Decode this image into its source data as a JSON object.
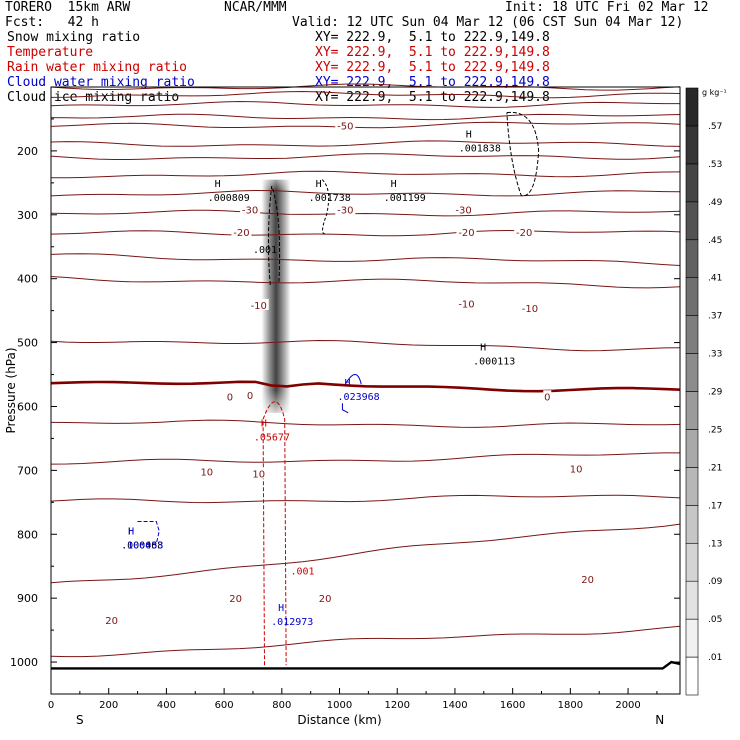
{
  "header": {
    "model": "TORERO  15km ARW",
    "org": "NCAR/MMM",
    "init": "Init: 18 UTC Fri 02 Mar 12",
    "fcst": "Fcst:   42 h",
    "valid": "Valid: 12 UTC Sun 04 Mar 12 (06 CST Sun 04 Mar 12)"
  },
  "fields": [
    {
      "name": "Snow mixing ratio",
      "xy": "XY= 222.9,  5.1 to 222.9,149.8",
      "color": "#000000"
    },
    {
      "name": "Temperature",
      "xy": "XY= 222.9,  5.1 to 222.9,149.8",
      "color": "#cc0000"
    },
    {
      "name": "Rain water mixing ratio",
      "xy": "XY= 222.9,  5.1 to 222.9,149.8",
      "color": "#cc0000"
    },
    {
      "name": "Cloud water mixing ratio",
      "xy": "XY= 222.9,  5.1 to 222.9,149.8",
      "color": "#0000cc"
    },
    {
      "name": "Cloud ice mixing ratio",
      "xy": "XY= 222.9,  5.1 to 222.9,149.8",
      "color": "#000000"
    }
  ],
  "chart_data": {
    "type": "cross-section contour",
    "xlabel": "Distance (km)",
    "ylabel": "Pressure (hPa)",
    "xlim": [
      0,
      2180
    ],
    "ylim": [
      1050,
      100
    ],
    "x_ticks": [
      0,
      200,
      400,
      600,
      800,
      1000,
      1200,
      1400,
      1600,
      1800,
      2000
    ],
    "y_ticks": [
      200,
      300,
      400,
      500,
      600,
      700,
      800,
      900,
      1000
    ],
    "x_end_labels": {
      "left": "S",
      "right": "N"
    },
    "temperature_isotherms": [
      {
        "T": -70,
        "y0": 100,
        "y1": 100
      },
      {
        "T": -65,
        "y0": 112,
        "y1": 112
      },
      {
        "T": -60,
        "y0": 128,
        "y1": 127
      },
      {
        "T": -55,
        "y0": 148,
        "y1": 146
      },
      {
        "T": -50,
        "y0": 162,
        "y1": 158
      },
      {
        "T": -45,
        "y0": 190,
        "y1": 188
      },
      {
        "T": -40,
        "y0": 210,
        "y1": 208
      },
      {
        "T": -35,
        "y0": 238,
        "y1": 235
      },
      {
        "T": -30,
        "y0": 268,
        "y1": 265
      },
      {
        "T": -25,
        "y0": 298,
        "y1": 297
      },
      {
        "T": -20,
        "y0": 330,
        "y1": 328
      },
      {
        "T": -15,
        "y0": 365,
        "y1": 375
      },
      {
        "T": -10,
        "y0": 400,
        "y1": 410
      },
      {
        "T": -5,
        "y0": 495,
        "y1": 510
      },
      {
        "T": 0,
        "y0": 560,
        "y1": 575
      },
      {
        "T": 5,
        "y0": 625,
        "y1": 630
      },
      {
        "T": 10,
        "y0": 690,
        "y1": 675
      },
      {
        "T": 15,
        "y0": 750,
        "y1": 740
      },
      {
        "T": 20,
        "y0": 880,
        "y1": 780
      },
      {
        "T": 25,
        "y0": 990,
        "y1": 945
      }
    ],
    "temperature_labels": [
      {
        "text": "-50",
        "x": 1020,
        "p": 160
      },
      {
        "text": "-30",
        "x": 690,
        "p": 292
      },
      {
        "text": "-30",
        "x": 1020,
        "p": 292
      },
      {
        "text": "-30",
        "x": 1430,
        "p": 292
      },
      {
        "text": "-20",
        "x": 660,
        "p": 327
      },
      {
        "text": "-20",
        "x": 1440,
        "p": 327
      },
      {
        "text": "-20",
        "x": 1640,
        "p": 327
      },
      {
        "text": "-10",
        "x": 720,
        "p": 441
      },
      {
        "text": "-10",
        "x": 1440,
        "p": 439
      },
      {
        "text": "-10",
        "x": 1660,
        "p": 446
      },
      {
        "text": "0",
        "x": 620,
        "p": 584
      },
      {
        "text": "0",
        "x": 690,
        "p": 582
      },
      {
        "text": "0",
        "x": 1720,
        "p": 584
      },
      {
        "text": "10",
        "x": 540,
        "p": 702
      },
      {
        "text": "10",
        "x": 720,
        "p": 705
      },
      {
        "text": "10",
        "x": 1820,
        "p": 697
      },
      {
        "text": "20",
        "x": 210,
        "p": 934
      },
      {
        "text": "20",
        "x": 640,
        "p": 900
      },
      {
        "text": "20",
        "x": 950,
        "p": 900
      },
      {
        "text": "20",
        "x": 1860,
        "p": 870
      }
    ],
    "highs": [
      {
        "value": ".001838",
        "x": 1420,
        "p": 187,
        "color": "#000000"
      },
      {
        "value": ".000809",
        "x": 550,
        "p": 264,
        "color": "#000000"
      },
      {
        "value": ".001738",
        "x": 900,
        "p": 264,
        "color": "#000000"
      },
      {
        "value": ".001199",
        "x": 1160,
        "p": 264,
        "color": "#000000"
      },
      {
        "value": ".000113",
        "x": 1470,
        "p": 520,
        "color": "#000000"
      },
      {
        "value": ".023968",
        "x": 1000,
        "p": 576,
        "color": "#0000cc"
      },
      {
        "value": ".05677",
        "x": 710,
        "p": 639,
        "color": "#cc0000"
      },
      {
        "value": ".000468",
        "x": 250,
        "p": 808,
        "color": "#000000"
      },
      {
        "value": ".100033",
        "x": 250,
        "p": 808,
        "color": "#0000cc"
      },
      {
        "value": ".012973",
        "x": 770,
        "p": 928,
        "color": "#0000cc"
      }
    ],
    "contour_labels": [
      {
        "text": ".001",
        "x": 700,
        "p": 360,
        "color": "#000000"
      },
      {
        "text": ".001",
        "x": 830,
        "p": 863,
        "color": "#cc0000"
      }
    ],
    "colorbar": {
      "unit": "g kg⁻¹",
      "levels": [
        ".01",
        ".05",
        ".09",
        ".13",
        ".17",
        ".21",
        ".25",
        ".29",
        ".33",
        ".37",
        ".41",
        ".45",
        ".49",
        ".53",
        ".57"
      ]
    }
  }
}
